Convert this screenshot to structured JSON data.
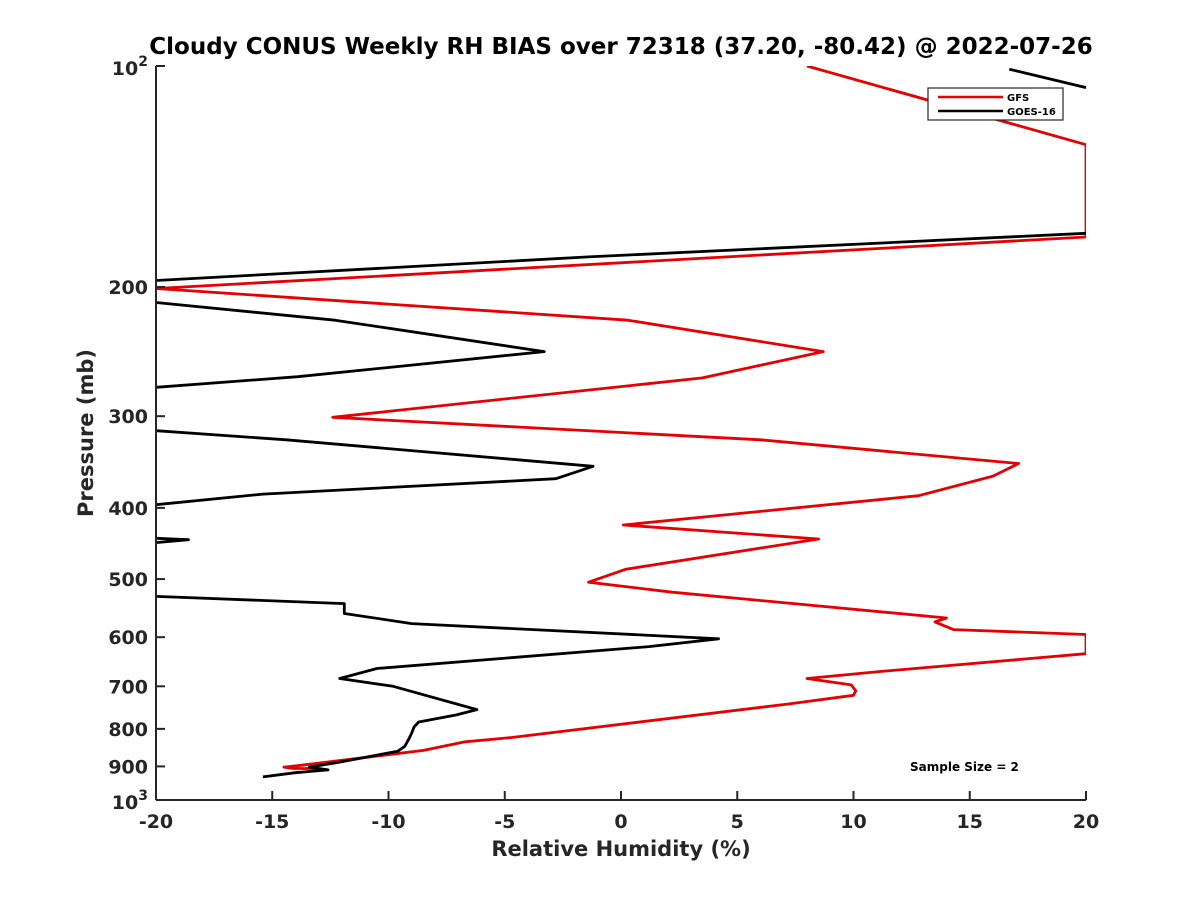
{
  "chart_data": {
    "type": "line",
    "title": "Cloudy CONUS Weekly RH BIAS over 72318 (37.20, -80.42) @ 2022-07-26",
    "xlabel": "Relative Humidity (%)",
    "ylabel": "Pressure (mb)",
    "xlim": [
      -20,
      20
    ],
    "ylim": [
      100,
      1000
    ],
    "yscale": "log",
    "yreversed": true,
    "x_ticks": [
      -20,
      -15,
      -10,
      -5,
      0,
      5,
      10,
      15,
      20
    ],
    "x_tick_labels": [
      "-20",
      "-15",
      "-10",
      "-5",
      "0",
      "5",
      "10",
      "15",
      "20"
    ],
    "y_ticks": [
      200,
      300,
      400,
      500,
      600,
      700,
      800,
      900
    ],
    "y_tick_labels": [
      "200",
      "300",
      "400",
      "500",
      "600",
      "700",
      "800",
      "900"
    ],
    "y_edge_labels": [
      {
        "value": 100,
        "base": "10",
        "exp": "2"
      },
      {
        "value": 1000,
        "base": "10",
        "exp": "3"
      }
    ],
    "legend_position": "top-right",
    "annotation": "Sample Size = 2",
    "series": [
      {
        "name": "GFS",
        "color": "#e60000",
        "points": [
          [
            8,
            100
          ],
          [
            20,
            128
          ],
          [
            20,
            171
          ],
          [
            -20,
            201
          ],
          [
            0.3,
            222
          ],
          [
            8.7,
            245
          ],
          [
            3.5,
            266
          ],
          [
            -12.4,
            301
          ],
          [
            6,
            323
          ],
          [
            17.1,
            348
          ],
          [
            16,
            362
          ],
          [
            12.8,
            385
          ],
          [
            0.1,
            422
          ],
          [
            8.5,
            441
          ],
          [
            0.2,
            485
          ],
          [
            -1.4,
            505
          ],
          [
            2.2,
            521
          ],
          [
            14,
            565
          ],
          [
            13.5,
            572
          ],
          [
            14.3,
            586
          ],
          [
            20,
            595
          ],
          [
            20,
            632
          ],
          [
            11.2,
            668
          ],
          [
            8,
            683
          ],
          [
            9.9,
            697
          ],
          [
            10.1,
            710
          ],
          [
            10,
            720
          ],
          [
            7.2,
            740
          ],
          [
            -4.7,
            822
          ],
          [
            -6.7,
            833
          ],
          [
            -8.5,
            856
          ],
          [
            -12,
            883
          ],
          [
            -13.9,
            898
          ],
          [
            -14.5,
            902
          ],
          [
            -14.1,
            906
          ],
          [
            -13.3,
            906
          ],
          [
            -13,
            908
          ],
          [
            -12.6,
            910
          ]
        ]
      },
      {
        "name": "GOES-16",
        "color": "#000000",
        "points": [
          [
            16.7,
            101
          ],
          [
            20,
            107
          ],
          [
            null,
            null
          ],
          [
            20,
            169
          ],
          [
            -1.4,
            182
          ],
          [
            -20,
            196
          ],
          [
            null,
            null
          ],
          [
            -20,
            210
          ],
          [
            -12.3,
            222
          ],
          [
            -3.3,
            245
          ],
          [
            -13.9,
            265
          ],
          [
            -20,
            274
          ],
          [
            null,
            null
          ],
          [
            -20,
            314
          ],
          [
            -14.4,
            323
          ],
          [
            -1.2,
            351
          ],
          [
            -2.8,
            365
          ],
          [
            -15.4,
            383
          ],
          [
            -20,
            396
          ],
          [
            null,
            null
          ],
          [
            -20,
            440
          ],
          [
            -18.6,
            442
          ],
          [
            -20,
            446
          ],
          [
            null,
            null
          ],
          [
            -20,
            528
          ],
          [
            -11.9,
            540
          ],
          [
            -11.9,
            557
          ],
          [
            -9,
            575
          ],
          [
            4.2,
            603
          ],
          [
            1.2,
            618
          ],
          [
            -10.5,
            662
          ],
          [
            -12.1,
            683
          ],
          [
            -9.8,
            700
          ],
          [
            -6.2,
            753
          ],
          [
            -7.1,
            766
          ],
          [
            -8.7,
            783
          ],
          [
            -8.9,
            795
          ],
          [
            -9,
            810
          ],
          [
            -9.1,
            823
          ],
          [
            -9.3,
            845
          ],
          [
            -9.6,
            858
          ],
          [
            -12.1,
            888
          ],
          [
            -13.4,
            902
          ],
          [
            -12.6,
            910
          ],
          [
            -14,
            918
          ],
          [
            -15.4,
            930
          ]
        ]
      }
    ]
  }
}
